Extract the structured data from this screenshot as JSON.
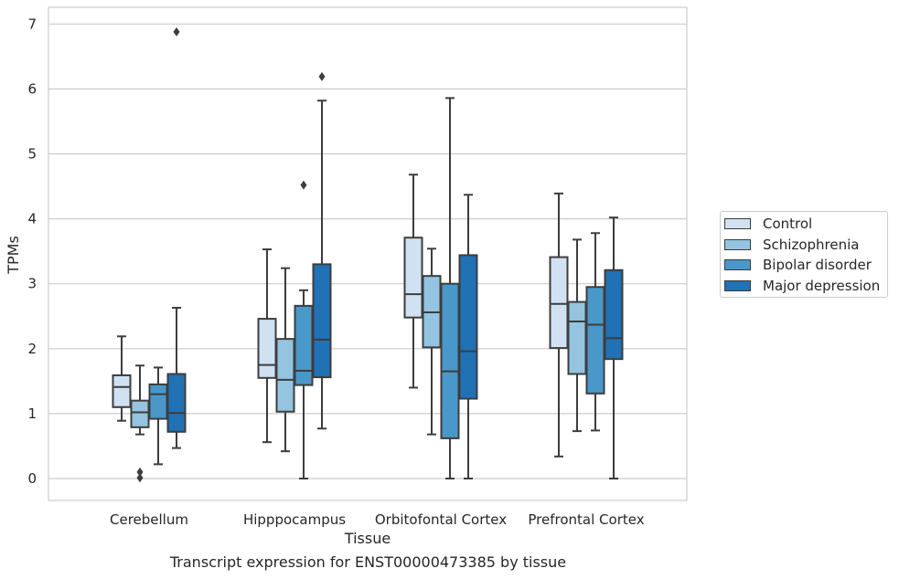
{
  "chart_data": {
    "type": "box",
    "caption": "Transcript expression for ENST00000473385 by tissue",
    "xlabel": "Tissue",
    "ylabel": "TPMs",
    "ylim": [
      -0.33,
      7.2
    ],
    "yticks": [
      "0",
      "1",
      "2",
      "3",
      "4",
      "5",
      "6",
      "7"
    ],
    "grid": true,
    "legend_position": "right",
    "categories": [
      "Cerebellum",
      "Hipppocampus",
      "Orbitofontal Cortex",
      "Prefrontal Cortex"
    ],
    "series": [
      {
        "name": "Control",
        "color": "#d0e1f2",
        "boxes": [
          {
            "whisker_low": 0.89,
            "q1": 1.1,
            "median": 1.41,
            "q3": 1.59,
            "whisker_high": 2.19,
            "outliers": []
          },
          {
            "whisker_low": 0.56,
            "q1": 1.55,
            "median": 1.75,
            "q3": 2.46,
            "whisker_high": 3.53,
            "outliers": []
          },
          {
            "whisker_low": 1.4,
            "q1": 2.48,
            "median": 2.84,
            "q3": 3.71,
            "whisker_high": 4.68,
            "outliers": []
          },
          {
            "whisker_low": 0.34,
            "q1": 2.01,
            "median": 2.69,
            "q3": 3.41,
            "whisker_high": 4.39,
            "outliers": []
          }
        ]
      },
      {
        "name": "Schizophrenia",
        "color": "#94c4df",
        "boxes": [
          {
            "whisker_low": 0.68,
            "q1": 0.79,
            "median": 1.02,
            "q3": 1.2,
            "whisker_high": 1.74,
            "outliers": [
              0.1,
              0.01
            ]
          },
          {
            "whisker_low": 0.42,
            "q1": 1.03,
            "median": 1.52,
            "q3": 2.15,
            "whisker_high": 3.24,
            "outliers": []
          },
          {
            "whisker_low": 0.68,
            "q1": 2.02,
            "median": 2.56,
            "q3": 3.12,
            "whisker_high": 3.54,
            "outliers": []
          },
          {
            "whisker_low": 0.73,
            "q1": 1.61,
            "median": 2.42,
            "q3": 2.72,
            "whisker_high": 3.68,
            "outliers": []
          }
        ]
      },
      {
        "name": "Bipolar disorder",
        "color": "#4a98c9",
        "boxes": [
          {
            "whisker_low": 0.22,
            "q1": 0.92,
            "median": 1.3,
            "q3": 1.45,
            "whisker_high": 1.71,
            "outliers": []
          },
          {
            "whisker_low": 0.0,
            "q1": 1.44,
            "median": 1.66,
            "q3": 2.66,
            "whisker_high": 2.9,
            "outliers": [
              4.52
            ]
          },
          {
            "whisker_low": 0.0,
            "q1": 0.62,
            "median": 1.65,
            "q3": 3.0,
            "whisker_high": 5.86,
            "outliers": []
          },
          {
            "whisker_low": 0.74,
            "q1": 1.31,
            "median": 2.37,
            "q3": 2.95,
            "whisker_high": 3.78,
            "outliers": []
          }
        ]
      },
      {
        "name": "Major depression",
        "color": "#2171b5",
        "boxes": [
          {
            "whisker_low": 0.47,
            "q1": 0.72,
            "median": 1.01,
            "q3": 1.61,
            "whisker_high": 2.63,
            "outliers": [
              6.88
            ]
          },
          {
            "whisker_low": 0.77,
            "q1": 1.56,
            "median": 2.14,
            "q3": 3.3,
            "whisker_high": 5.82,
            "outliers": [
              6.19
            ]
          },
          {
            "whisker_low": 0.0,
            "q1": 1.23,
            "median": 1.96,
            "q3": 3.44,
            "whisker_high": 4.37,
            "outliers": []
          },
          {
            "whisker_low": 0.0,
            "q1": 1.84,
            "median": 2.16,
            "q3": 3.21,
            "whisker_high": 4.02,
            "outliers": []
          }
        ]
      }
    ]
  }
}
